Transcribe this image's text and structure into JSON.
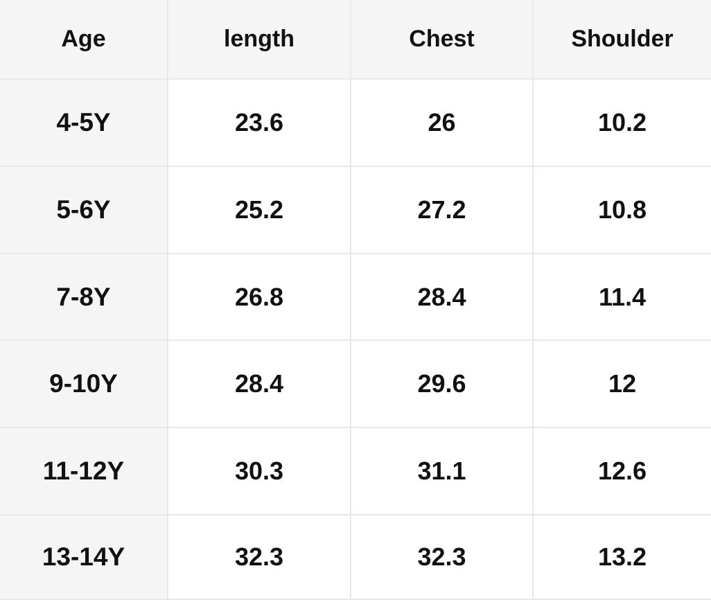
{
  "table": {
    "header": [
      "Age",
      "length",
      "Chest",
      "Shoulder"
    ],
    "rows": [
      [
        "4-5Y",
        "23.6",
        "26",
        "10.2"
      ],
      [
        "5-6Y",
        "25.2",
        "27.2",
        "10.8"
      ],
      [
        "7-8Y",
        "26.8",
        "28.4",
        "11.4"
      ],
      [
        "9-10Y",
        "28.4",
        "29.6",
        "12"
      ],
      [
        "11-12Y",
        "30.3",
        "31.1",
        "12.6"
      ],
      [
        "13-14Y",
        "32.3",
        "32.3",
        "13.2"
      ]
    ]
  }
}
